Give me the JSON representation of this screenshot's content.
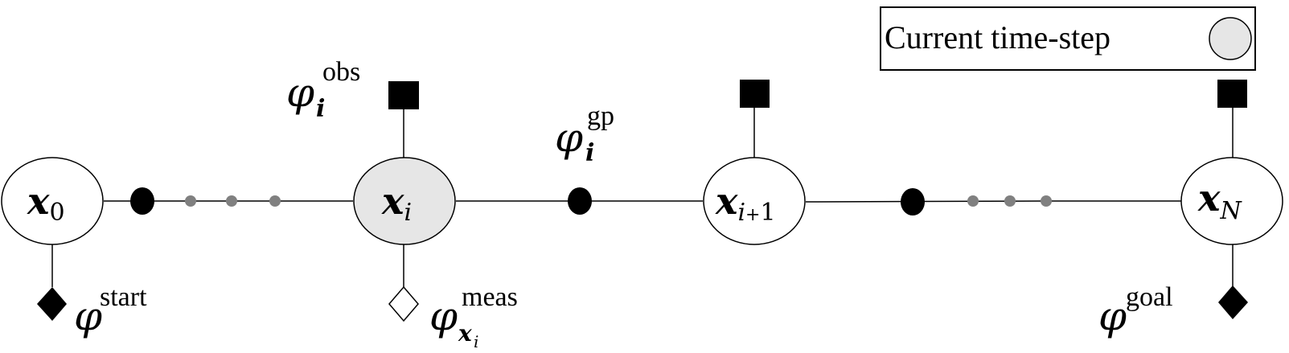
{
  "legend": {
    "label": "Current time-step",
    "current_fill": "#e6e6e6"
  },
  "nodes": {
    "x0": {
      "main": "x",
      "sub": "0"
    },
    "xi": {
      "main": "x",
      "sub": "i"
    },
    "xi1": {
      "main": "x",
      "sub_i": "i",
      "sub_plus": "+",
      "sub_one": "1"
    },
    "xN": {
      "main": "x",
      "sub": "N"
    }
  },
  "factors": {
    "start": {
      "symbol": "φ",
      "sup": "start"
    },
    "obs": {
      "symbol": "φ",
      "sub": "i",
      "sup": "obs"
    },
    "gp": {
      "symbol": "φ",
      "sub": "i",
      "sup": "gp"
    },
    "meas": {
      "symbol": "φ",
      "sub_x": "x",
      "sub_i": "i",
      "sup": "meas"
    },
    "goal": {
      "symbol": "φ",
      "sup": "goal"
    }
  },
  "colors": {
    "stroke": "#000000",
    "factor_fill": "#000000",
    "ellipsis_dots": "#808080",
    "meas_factor_fill": "#ffffff"
  }
}
